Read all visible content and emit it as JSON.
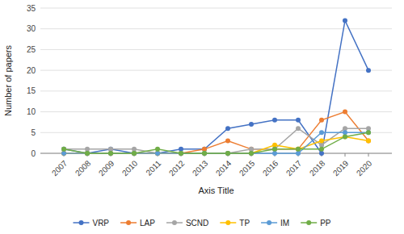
{
  "chart_data": {
    "type": "line",
    "xlabel": "Axis Title",
    "ylabel": "Number of papers",
    "x": [
      2007,
      2008,
      2009,
      2010,
      2011,
      2012,
      2013,
      2014,
      2015,
      2016,
      2017,
      2018,
      2019,
      2020
    ],
    "xlim": [
      2006,
      2021
    ],
    "xticks": [
      2007,
      2008,
      2009,
      2010,
      2011,
      2012,
      2013,
      2014,
      2015,
      2016,
      2017,
      2018,
      2019,
      2020
    ],
    "ylim": [
      0,
      35
    ],
    "yticks": [
      0,
      5,
      10,
      15,
      20,
      25,
      30,
      35
    ],
    "grid": "y",
    "legend": "bottom",
    "marker": "circle",
    "series": [
      {
        "name": "VRP",
        "color": "#4472C4",
        "values": [
          1,
          0,
          1,
          0,
          0,
          1,
          1,
          6,
          7,
          8,
          8,
          0,
          32,
          20
        ]
      },
      {
        "name": "LAP",
        "color": "#ED7D31",
        "values": [
          0,
          0,
          0,
          0,
          0,
          0,
          1,
          3,
          1,
          1,
          1,
          8,
          10,
          3
        ]
      },
      {
        "name": "SCND",
        "color": "#A5A5A5",
        "values": [
          1,
          1,
          1,
          1,
          0,
          0,
          0,
          0,
          1,
          1,
          6,
          2,
          6,
          6
        ]
      },
      {
        "name": "TP",
        "color": "#FFC000",
        "values": [
          0,
          0,
          0,
          0,
          0,
          0,
          0,
          0,
          0,
          2,
          1,
          3,
          4,
          3
        ]
      },
      {
        "name": "IM",
        "color": "#5B9BD5",
        "values": [
          0,
          0,
          0,
          0,
          0,
          0,
          0,
          0,
          0,
          0,
          0,
          5,
          5,
          5
        ]
      },
      {
        "name": "PP",
        "color": "#70AD47",
        "values": [
          1,
          0,
          0,
          0,
          1,
          0,
          0,
          0,
          0,
          1,
          1,
          1,
          4,
          5
        ]
      }
    ]
  }
}
